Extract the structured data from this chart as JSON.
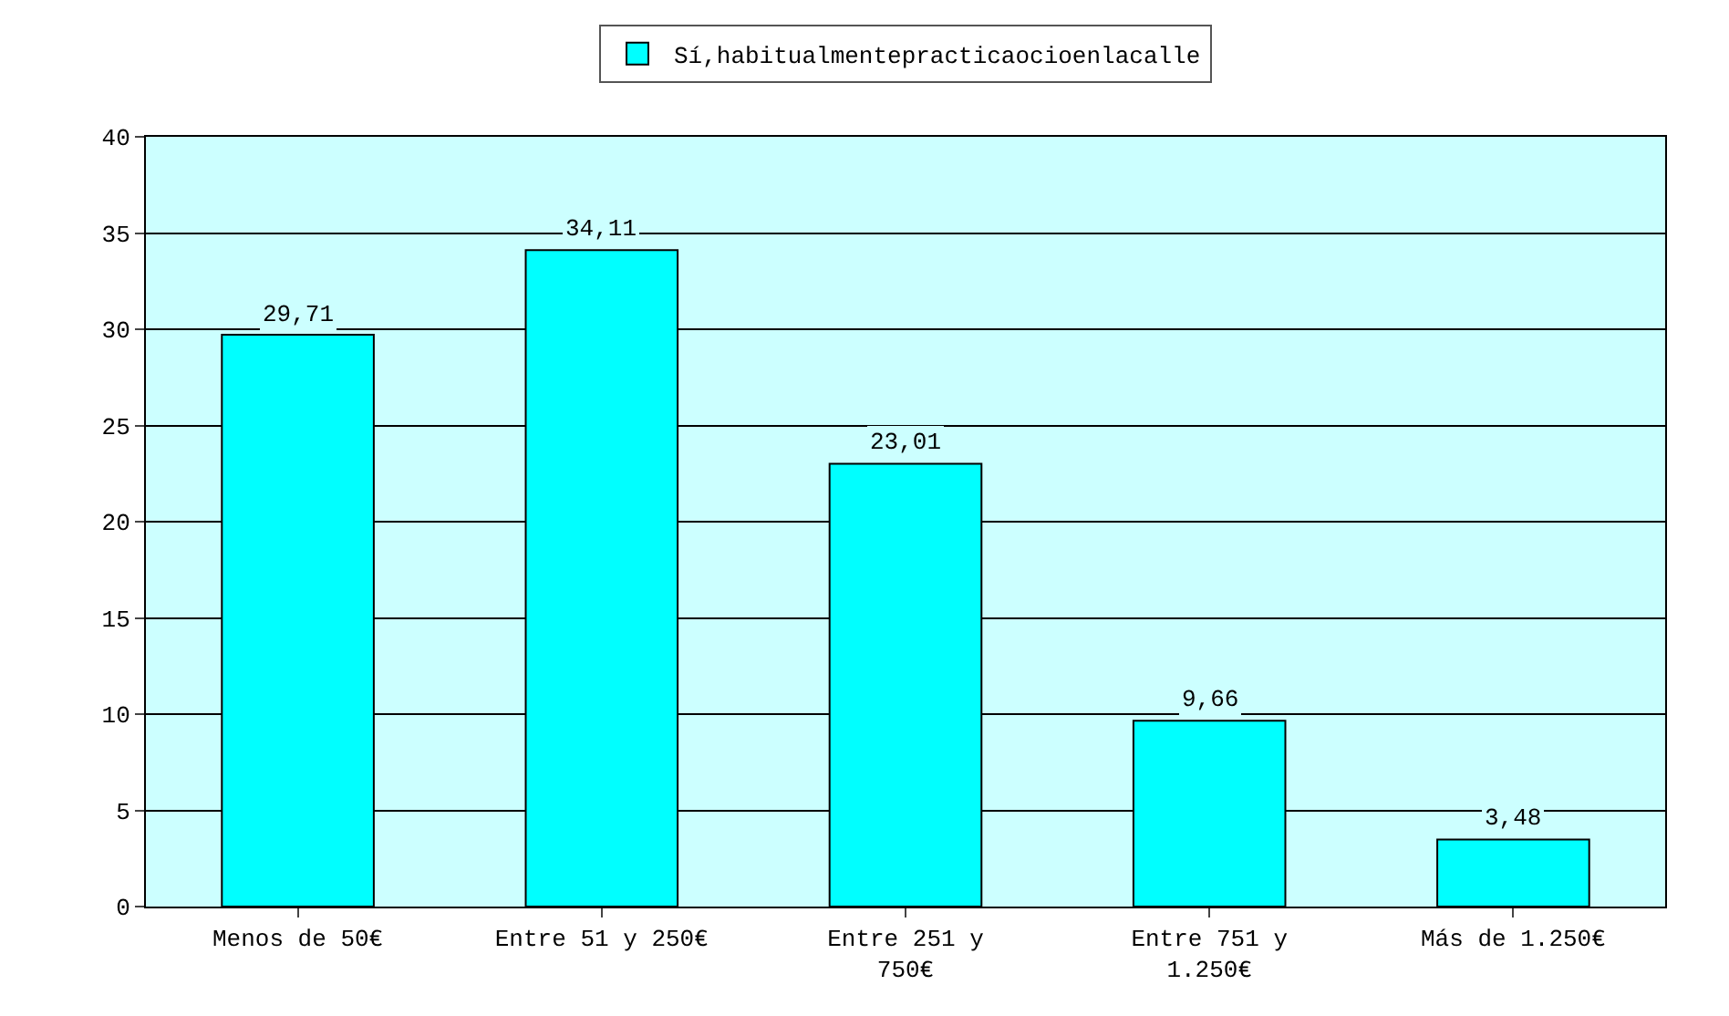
{
  "chart_data": {
    "type": "bar",
    "categories": [
      "Menos de 50€",
      "Entre 51 y 250€",
      "Entre 251 y 750€",
      "Entre 751 y 1.250€",
      "Más de 1.250€"
    ],
    "series": [
      {
        "name": "Sí,habitualmentepracticaocioenlacalle",
        "color": "#00ffff",
        "values": [
          29.71,
          34.11,
          23.01,
          9.66,
          3.48
        ],
        "value_labels": [
          "29,71",
          "34,11",
          "23,01",
          "9,66",
          "3,48"
        ]
      }
    ],
    "ylim": [
      0,
      40
    ],
    "yticks": [
      0,
      5,
      10,
      15,
      20,
      25,
      30,
      35,
      40
    ],
    "grid": "y",
    "legend": "top"
  }
}
